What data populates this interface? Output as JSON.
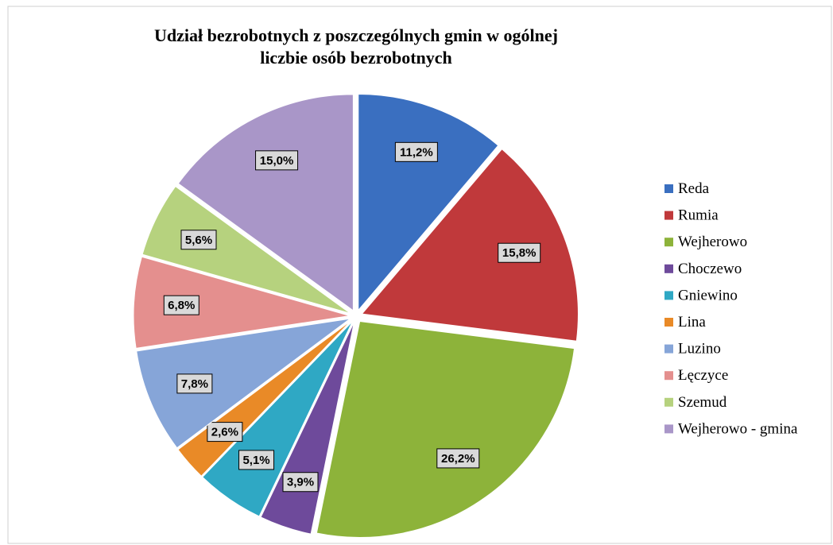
{
  "chart_data": {
    "type": "pie",
    "title": "Udział bezrobotnych z poszczególnych gmin w ogólnej liczbie osób bezrobotnych",
    "categories": [
      "Reda",
      "Rumia",
      "Wejherowo",
      "Choczewo",
      "Gniewino",
      "Lina",
      "Luzino",
      "Łęczyce",
      "Szemud",
      "Wejherowo - gmina"
    ],
    "values": [
      11.2,
      15.8,
      26.2,
      3.9,
      5.1,
      2.6,
      7.8,
      6.8,
      5.6,
      15.0
    ],
    "value_labels": [
      "11,2%",
      "15,8%",
      "26,2%",
      "3,9%",
      "5,1%",
      "2,6%",
      "7,8%",
      "6,8%",
      "5,6%",
      "15,0%"
    ],
    "colors": [
      "#3a6fc0",
      "#c0393b",
      "#8db33a",
      "#6e4a9b",
      "#2fa8c4",
      "#e98a27",
      "#86a5d8",
      "#e48f8e",
      "#b6d27e",
      "#a996c8"
    ],
    "legend": "right"
  }
}
